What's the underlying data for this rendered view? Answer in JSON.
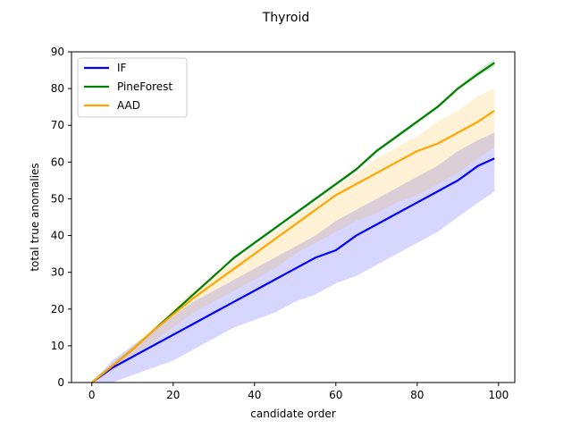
{
  "chart_data": {
    "type": "line",
    "title": "Thyroid",
    "xlabel": "candidate order",
    "ylabel": "total true anomalies",
    "xlim": [
      -5,
      104
    ],
    "ylim": [
      0,
      90
    ],
    "xticks": [
      0,
      20,
      40,
      60,
      80,
      100
    ],
    "yticks": [
      0,
      10,
      20,
      30,
      40,
      50,
      60,
      70,
      80,
      90
    ],
    "grid": false,
    "legend_position": "top-left",
    "series": [
      {
        "name": "IF",
        "color": "#0000ff",
        "x": [
          0,
          5,
          10,
          15,
          20,
          25,
          30,
          35,
          40,
          45,
          50,
          55,
          60,
          65,
          70,
          75,
          80,
          85,
          90,
          95,
          99
        ],
        "y": [
          0,
          4,
          7,
          10,
          13,
          16,
          19,
          22,
          25,
          28,
          31,
          34,
          36,
          40,
          43,
          46,
          49,
          52,
          55,
          59,
          61
        ],
        "lower": [
          0,
          0,
          2,
          4,
          6,
          9,
          12,
          15,
          17,
          19,
          22,
          24,
          27,
          29,
          32,
          35,
          38,
          41,
          45,
          49,
          52
        ],
        "upper": [
          0,
          6,
          10,
          14,
          18,
          22,
          25,
          28,
          31,
          34,
          37,
          40,
          44,
          47,
          50,
          53,
          56,
          59,
          63,
          66,
          68
        ]
      },
      {
        "name": "PineForest",
        "color": "#008000",
        "x": [
          0,
          5,
          10,
          15,
          20,
          25,
          30,
          35,
          40,
          45,
          50,
          55,
          60,
          65,
          70,
          75,
          80,
          85,
          90,
          95,
          99
        ],
        "y": [
          0,
          4.5,
          9,
          14,
          19,
          24,
          29,
          34,
          38,
          42,
          46,
          50,
          54,
          58,
          63,
          67,
          71,
          75,
          80,
          84,
          87
        ],
        "lower": [
          0,
          4.5,
          9,
          14,
          19,
          24,
          29,
          33.5,
          37.5,
          41.5,
          45.5,
          49.5,
          53.5,
          57.5,
          62.5,
          66.5,
          70.5,
          74.5,
          79.5,
          83.5,
          86
        ],
        "upper": [
          0,
          4.5,
          9,
          14,
          19,
          24,
          29,
          34.5,
          38.5,
          42.5,
          46.5,
          50.5,
          54.5,
          58.5,
          63.5,
          67.5,
          71.5,
          75.5,
          80.5,
          85,
          88
        ]
      },
      {
        "name": "AAD",
        "color": "#ffa500",
        "x": [
          0,
          5,
          10,
          15,
          20,
          25,
          30,
          35,
          40,
          45,
          50,
          55,
          60,
          65,
          70,
          75,
          80,
          85,
          90,
          95,
          99
        ],
        "y": [
          0,
          4.5,
          9,
          14,
          18.5,
          23,
          27,
          31,
          35,
          39,
          43,
          47,
          51,
          54,
          57,
          60,
          63,
          65,
          68,
          71,
          74
        ],
        "lower": [
          0,
          3,
          7,
          11,
          15,
          19,
          22,
          25,
          28,
          31,
          35,
          38,
          41,
          44,
          46,
          49,
          51,
          54,
          57,
          61,
          64
        ],
        "upper": [
          0,
          5,
          10,
          15,
          20,
          25,
          29,
          33,
          37,
          41,
          45,
          49,
          53,
          57,
          61,
          64,
          67,
          71,
          74,
          78,
          80
        ]
      }
    ]
  }
}
